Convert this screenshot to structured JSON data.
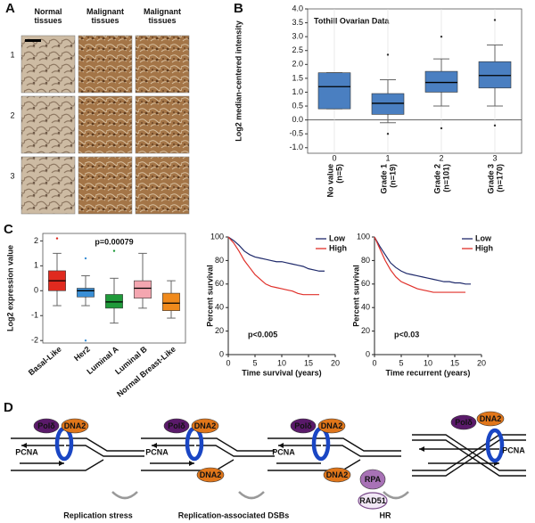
{
  "panel_labels": [
    "A",
    "B",
    "C",
    "D"
  ],
  "panel_a": {
    "columns": [
      "Normal tissues",
      "Malignant tissues",
      "Malignant tissues"
    ],
    "rows": [
      "1",
      "2",
      "3"
    ]
  },
  "chart_data": [
    {
      "type": "box",
      "annotation": "Tothill Ovarian Data",
      "ylabel": "Log2 median-centered intensity",
      "category_codes": [
        "0",
        "1",
        "2",
        "3"
      ],
      "categories": [
        "No value",
        "Grade 1",
        "Grade 2",
        "Grade 3"
      ],
      "counts": [
        "(n=5)",
        "(n=19)",
        "(n=101)",
        "(n=170)"
      ],
      "color": "#4a7fc1",
      "boxes": [
        {
          "min": 0.4,
          "q1": 0.4,
          "median": 1.2,
          "q3": 1.7,
          "max": 1.7,
          "outliers": []
        },
        {
          "min": -0.1,
          "q1": 0.2,
          "median": 0.6,
          "q3": 0.95,
          "max": 1.45,
          "outliers": [
            2.35,
            -0.5
          ]
        },
        {
          "min": 0.5,
          "q1": 1.0,
          "median": 1.35,
          "q3": 1.75,
          "max": 2.2,
          "outliers": [
            3.0,
            -0.3
          ]
        },
        {
          "min": 0.5,
          "q1": 1.15,
          "median": 1.6,
          "q3": 2.1,
          "max": 2.7,
          "outliers": [
            3.6,
            -0.2
          ]
        }
      ],
      "ylim": [
        -1.2,
        4.0
      ],
      "yticks": [
        {
          "value": -1,
          "label": "-1.0"
        },
        -0.5,
        {
          "value": 0,
          "label": "0.0"
        },
        0.5,
        {
          "value": 1,
          "label": "1.0"
        },
        1.5,
        {
          "value": 2,
          "label": "2.0"
        },
        2.5,
        {
          "value": 3,
          "label": "3.0"
        },
        3.5,
        {
          "value": 4,
          "label": "4.0"
        }
      ],
      "zero_line": true
    },
    {
      "type": "box",
      "annotation": "p=0.00079",
      "ylabel": "Log2 expression value",
      "categories": [
        "Basal-Like",
        "Her2",
        "Luminal A",
        "Luminal B",
        "Normal Breast-Like"
      ],
      "colors": [
        "#e02a1f",
        "#3a8fd6",
        "#1f9a3a",
        "#f4a6b0",
        "#f08a1c"
      ],
      "boxes": [
        {
          "min": -0.6,
          "q1": 0.0,
          "median": 0.4,
          "q3": 0.8,
          "max": 1.5,
          "outliers": [
            2.1
          ]
        },
        {
          "min": -0.6,
          "q1": -0.25,
          "median": 0.0,
          "q3": 0.1,
          "max": 0.6,
          "outliers": [
            -2.0,
            1.3
          ]
        },
        {
          "min": -1.3,
          "q1": -0.7,
          "median": -0.45,
          "q3": -0.15,
          "max": 0.5,
          "outliers": [
            1.6
          ]
        },
        {
          "min": -0.7,
          "q1": -0.3,
          "median": 0.1,
          "q3": 0.4,
          "max": 1.5,
          "outliers": []
        },
        {
          "min": -1.1,
          "q1": -0.8,
          "median": -0.5,
          "q3": -0.1,
          "max": 0.4,
          "outliers": []
        }
      ],
      "ylim": [
        -2.1,
        2.3
      ],
      "yticks": [
        -2,
        -1,
        0,
        1,
        2
      ]
    },
    {
      "type": "line",
      "annotation": "p<0.005",
      "xlabel": "Time survival (years)",
      "ylabel": "Percent survival",
      "x": [
        0,
        1,
        2,
        3,
        4,
        5,
        6,
        7,
        8,
        9,
        10,
        11,
        12,
        13,
        14,
        15,
        16,
        17,
        18
      ],
      "series": [
        {
          "name": "Low",
          "color": "#1f2a6b",
          "values": [
            100,
            97,
            93,
            88,
            85,
            83,
            82,
            81,
            80,
            79,
            79,
            78,
            77,
            76,
            75,
            73,
            72,
            71,
            71
          ]
        },
        {
          "name": "High",
          "color": "#e0302a",
          "values": [
            100,
            95,
            88,
            80,
            74,
            68,
            64,
            60,
            58,
            57,
            56,
            55,
            54,
            52,
            51,
            51,
            51,
            51,
            null
          ]
        }
      ],
      "xlim": [
        0,
        20
      ],
      "xticks": [
        0,
        5,
        10,
        15,
        20
      ],
      "ylim": [
        0,
        100
      ],
      "yticks": [
        0,
        20,
        40,
        60,
        80,
        100
      ],
      "legend": "upper right"
    },
    {
      "type": "line",
      "annotation": "p<0.03",
      "xlabel": "Time recurrent (years)",
      "ylabel": "Percent survival",
      "x": [
        0,
        1,
        2,
        3,
        4,
        5,
        6,
        7,
        8,
        9,
        10,
        11,
        12,
        13,
        14,
        15,
        16,
        17,
        18
      ],
      "series": [
        {
          "name": "Low",
          "color": "#1f2a6b",
          "values": [
            100,
            92,
            85,
            78,
            74,
            71,
            69,
            68,
            67,
            66,
            65,
            64,
            63,
            62,
            62,
            61,
            61,
            60,
            60
          ]
        },
        {
          "name": "High",
          "color": "#e0302a",
          "values": [
            100,
            90,
            80,
            72,
            66,
            62,
            60,
            58,
            56,
            55,
            54,
            53,
            53,
            53,
            53,
            53,
            53,
            53,
            null
          ]
        }
      ],
      "xlim": [
        0,
        20
      ],
      "xticks": [
        0,
        5,
        10,
        15,
        20
      ],
      "ylim": [
        0,
        100
      ],
      "yticks": [
        0,
        20,
        40,
        60,
        80,
        100
      ],
      "legend": "upper right"
    }
  ],
  "panel_d": {
    "proteins": {
      "pol": "Polδ",
      "dna2": "DNA2",
      "pcna": "PCNA",
      "rpa": "RPA",
      "rad51": "RAD51"
    },
    "steps": [
      "Replication stress",
      "Replication-associated DSBs",
      "HR"
    ]
  }
}
